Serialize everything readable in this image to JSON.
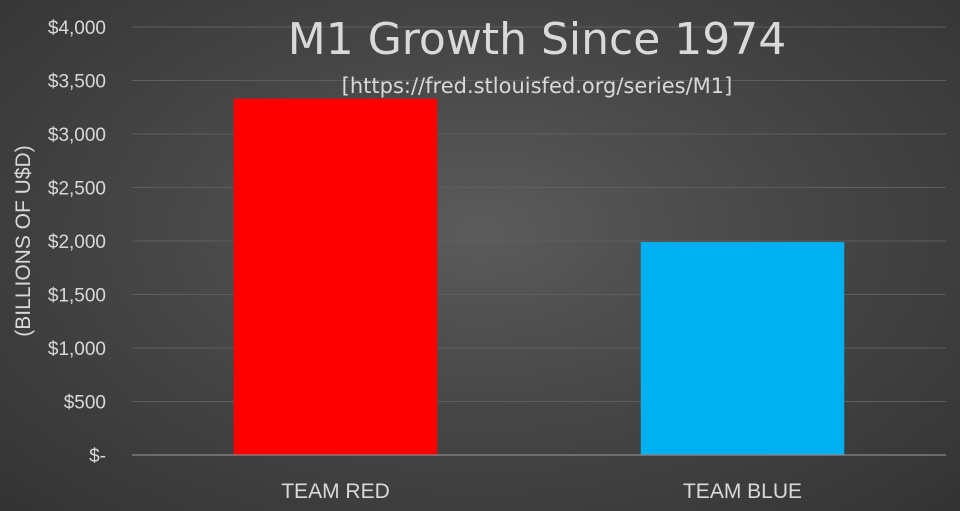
{
  "chart_data": {
    "type": "bar",
    "title": "M1 Growth Since 1974",
    "subtitle": "[https://fred.stlouisfed.org/series/M1]",
    "xlabel": "",
    "ylabel": "(BILLIONS OF U$D)",
    "categories": [
      "TEAM RED",
      "TEAM BLUE"
    ],
    "values": [
      3330,
      1990
    ],
    "colors": [
      "#ff0000",
      "#00b0f0"
    ],
    "ylim": [
      0,
      4000
    ],
    "yticks": [
      0,
      500,
      1000,
      1500,
      2000,
      2500,
      3000,
      3500,
      4000
    ],
    "ytick_labels": [
      "$-",
      "$500",
      "$1,000",
      "$1,500",
      "$2,000",
      "$2,500",
      "$3,000",
      "$3,500",
      "$4,000"
    ],
    "grid": true,
    "legend": "none"
  }
}
